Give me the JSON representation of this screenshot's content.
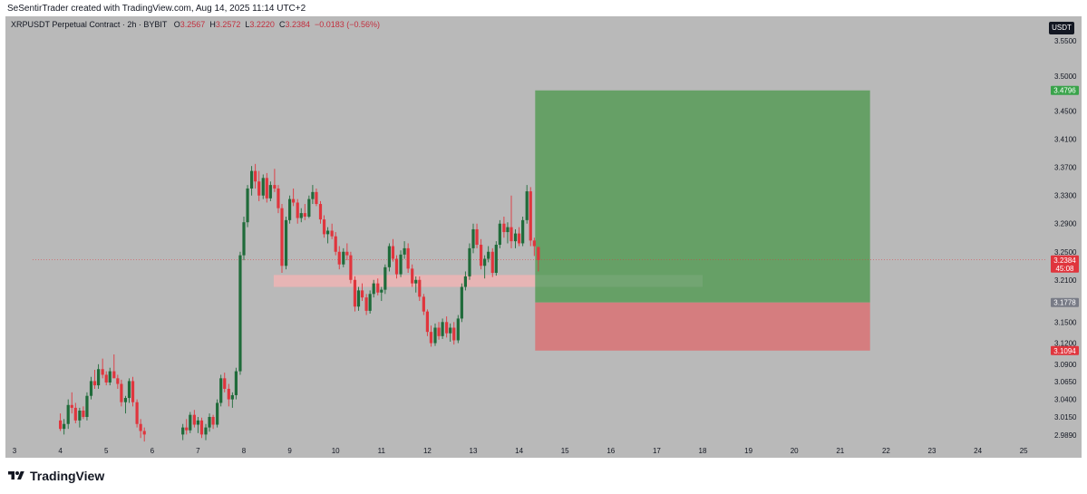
{
  "header": {
    "author_line": "SeSentirTrader created with TradingView.com, Aug 14, 2025 11:14 UTC+2"
  },
  "legend": {
    "symbol": "XRPUSDT Perpetual Contract · 2h · BYBIT",
    "open_label": "O",
    "open": "3.2567",
    "high_label": "H",
    "high": "3.2572",
    "low_label": "L",
    "low": "3.2220",
    "close_label": "C",
    "close": "3.2384",
    "change": "−0.0183 (−0.56%)"
  },
  "toolbar": {
    "currency_button": "USDT"
  },
  "footer": {
    "logo_text": "TradingView"
  },
  "colors": {
    "background": "#b9b9b9",
    "bull": "#1f6b3a",
    "bear": "#e0353d",
    "target_zone": "#66a066",
    "stop_zone": "#d57d7f",
    "supply_band": "#efb4b4",
    "price_label_current": "#e0353d",
    "price_label_target": "#39a34a",
    "price_label_entry": "#787b86",
    "price_label_stop": "#e0353d"
  },
  "chart_data": {
    "type": "candlestick",
    "symbol": "XRPUSDT",
    "interval": "2h",
    "exchange": "BYBIT",
    "currency": "USDT",
    "x_axis_labels": [
      {
        "label": "3",
        "day": 3
      },
      {
        "label": "4",
        "day": 4
      },
      {
        "label": "5",
        "day": 5
      },
      {
        "label": "6",
        "day": 6
      },
      {
        "label": "7",
        "day": 7
      },
      {
        "label": "8",
        "day": 8
      },
      {
        "label": "9",
        "day": 9
      },
      {
        "label": "10",
        "day": 10
      },
      {
        "label": "11",
        "day": 11
      },
      {
        "label": "12",
        "day": 12
      },
      {
        "label": "13",
        "day": 13
      },
      {
        "label": "14",
        "day": 14
      },
      {
        "label": "15",
        "day": 15
      },
      {
        "label": "16",
        "day": 16
      },
      {
        "label": "17",
        "day": 17
      },
      {
        "label": "18",
        "day": 18
      },
      {
        "label": "19",
        "day": 19
      },
      {
        "label": "20",
        "day": 20
      },
      {
        "label": "21",
        "day": 21
      },
      {
        "label": "22",
        "day": 22
      },
      {
        "label": "23",
        "day": 23
      },
      {
        "label": "24",
        "day": 24
      },
      {
        "label": "25",
        "day": 25
      }
    ],
    "y_ticks": [
      "3.5500",
      "3.5000",
      "3.4500",
      "3.4100",
      "3.3700",
      "3.3300",
      "3.2900",
      "3.2500",
      "3.2100",
      "3.1500",
      "3.1200",
      "3.0900",
      "3.0650",
      "3.0400",
      "3.0150",
      "2.9890"
    ],
    "y_range": [
      2.975,
      3.585
    ],
    "price_labels": {
      "current": {
        "price": 3.2384,
        "text": "3.2384",
        "countdown": "45:08"
      },
      "target": {
        "price": 3.4796,
        "text": "3.4796"
      },
      "entry": {
        "price": 3.1778,
        "text": "3.1778"
      },
      "stop": {
        "price": 3.1094,
        "text": "3.1094"
      }
    },
    "position": {
      "type": "long",
      "entry": 3.1778,
      "target": 3.4796,
      "stop": 3.1094,
      "day_start": 14.35,
      "day_end": 21.65
    },
    "supply_zone": {
      "price_top": 3.217,
      "price_bottom": 3.2,
      "day_start": 8.65,
      "day_end": 14.35,
      "faint_extension_end": 18.0
    },
    "candles": [
      [
        4.0,
        3.01,
        3.02,
        2.995,
        2.998
      ],
      [
        4.08,
        2.998,
        3.012,
        2.99,
        3.005
      ],
      [
        4.17,
        3.005,
        3.04,
        2.998,
        3.032
      ],
      [
        4.25,
        3.032,
        3.05,
        3.02,
        3.028
      ],
      [
        4.33,
        3.028,
        3.035,
        3.006,
        3.01
      ],
      [
        4.42,
        3.01,
        3.028,
        3.0,
        3.024
      ],
      [
        4.5,
        3.024,
        3.03,
        3.012,
        3.015
      ],
      [
        4.58,
        3.015,
        3.05,
        3.01,
        3.045
      ],
      [
        4.67,
        3.045,
        3.072,
        3.04,
        3.066
      ],
      [
        4.75,
        3.066,
        3.082,
        3.055,
        3.06
      ],
      [
        4.83,
        3.06,
        3.09,
        3.055,
        3.083
      ],
      [
        4.92,
        3.083,
        3.098,
        3.07,
        3.075
      ],
      [
        5.0,
        3.075,
        3.08,
        3.06,
        3.064
      ],
      [
        5.08,
        3.064,
        3.085,
        3.06,
        3.08
      ],
      [
        5.17,
        3.08,
        3.104,
        3.072,
        3.07
      ],
      [
        5.25,
        3.07,
        3.075,
        3.055,
        3.062
      ],
      [
        5.33,
        3.062,
        3.068,
        3.03,
        3.036
      ],
      [
        5.42,
        3.036,
        3.045,
        3.02,
        3.042
      ],
      [
        5.5,
        3.042,
        3.07,
        3.035,
        3.066
      ],
      [
        5.58,
        3.066,
        3.072,
        3.03,
        3.036
      ],
      [
        5.67,
        3.036,
        3.04,
        3.0,
        3.005
      ],
      [
        5.75,
        3.005,
        3.012,
        2.985,
        2.995
      ],
      [
        5.83,
        2.995,
        3.0,
        2.98,
        2.99
      ],
      [
        6.67,
        2.99,
        3.005,
        2.982,
        3.0
      ],
      [
        6.75,
        3.0,
        3.012,
        2.99,
        2.996
      ],
      [
        6.83,
        2.996,
        3.022,
        2.992,
        3.018
      ],
      [
        6.92,
        3.018,
        3.025,
        3.0,
        3.004
      ],
      [
        7.0,
        3.004,
        3.015,
        2.992,
        3.01
      ],
      [
        7.08,
        3.01,
        3.014,
        2.985,
        2.99
      ],
      [
        7.17,
        2.99,
        3.005,
        2.982,
        3.0
      ],
      [
        7.25,
        3.0,
        3.02,
        2.994,
        3.015
      ],
      [
        7.33,
        3.015,
        3.018,
        2.998,
        3.004
      ],
      [
        7.42,
        3.004,
        3.04,
        3.0,
        3.035
      ],
      [
        7.5,
        3.035,
        3.075,
        3.03,
        3.07
      ],
      [
        7.58,
        3.07,
        3.078,
        3.05,
        3.055
      ],
      [
        7.67,
        3.055,
        3.062,
        3.03,
        3.04
      ],
      [
        7.75,
        3.04,
        3.05,
        3.028,
        3.046
      ],
      [
        7.83,
        3.046,
        3.085,
        3.04,
        3.08
      ],
      [
        7.92,
        3.08,
        3.25,
        3.075,
        3.245
      ],
      [
        8.0,
        3.245,
        3.3,
        3.238,
        3.292
      ],
      [
        8.08,
        3.292,
        3.345,
        3.285,
        3.34
      ],
      [
        8.17,
        3.34,
        3.372,
        3.33,
        3.365
      ],
      [
        8.25,
        3.365,
        3.375,
        3.34,
        3.35
      ],
      [
        8.33,
        3.35,
        3.365,
        3.322,
        3.33
      ],
      [
        8.42,
        3.33,
        3.36,
        3.325,
        3.355
      ],
      [
        8.5,
        3.355,
        3.362,
        3.32,
        3.326
      ],
      [
        8.58,
        3.326,
        3.35,
        3.322,
        3.345
      ],
      [
        8.67,
        3.345,
        3.368,
        3.335,
        3.34
      ],
      [
        8.75,
        3.34,
        3.345,
        3.305,
        3.312
      ],
      [
        8.83,
        3.312,
        3.318,
        3.22,
        3.23
      ],
      [
        8.92,
        3.23,
        3.3,
        3.225,
        3.295
      ],
      [
        9.0,
        3.295,
        3.33,
        3.29,
        3.325
      ],
      [
        9.08,
        3.325,
        3.34,
        3.315,
        3.32
      ],
      [
        9.17,
        3.32,
        3.325,
        3.29,
        3.298
      ],
      [
        9.25,
        3.298,
        3.312,
        3.292,
        3.305
      ],
      [
        9.33,
        3.305,
        3.318,
        3.295,
        3.3
      ],
      [
        9.42,
        3.3,
        3.33,
        3.298,
        3.325
      ],
      [
        9.5,
        3.325,
        3.345,
        3.318,
        3.335
      ],
      [
        9.58,
        3.335,
        3.34,
        3.315,
        3.318
      ],
      [
        9.67,
        3.318,
        3.322,
        3.29,
        3.296
      ],
      [
        9.75,
        3.296,
        3.302,
        3.27,
        3.275
      ],
      [
        9.83,
        3.275,
        3.285,
        3.262,
        3.28
      ],
      [
        9.92,
        3.28,
        3.29,
        3.268,
        3.272
      ],
      [
        10.0,
        3.272,
        3.278,
        3.245,
        3.25
      ],
      [
        10.08,
        3.25,
        3.258,
        3.225,
        3.232
      ],
      [
        10.17,
        3.232,
        3.255,
        3.228,
        3.25
      ],
      [
        10.25,
        3.25,
        3.262,
        3.238,
        3.245
      ],
      [
        10.33,
        3.245,
        3.25,
        3.205,
        3.21
      ],
      [
        10.42,
        3.21,
        3.215,
        3.165,
        3.172
      ],
      [
        10.5,
        3.172,
        3.2,
        3.166,
        3.195
      ],
      [
        10.58,
        3.195,
        3.205,
        3.18,
        3.185
      ],
      [
        10.67,
        3.185,
        3.19,
        3.16,
        3.166
      ],
      [
        10.75,
        3.166,
        3.195,
        3.162,
        3.19
      ],
      [
        10.83,
        3.19,
        3.21,
        3.185,
        3.205
      ],
      [
        10.92,
        3.205,
        3.212,
        3.188,
        3.192
      ],
      [
        11.0,
        3.192,
        3.2,
        3.18,
        3.196
      ],
      [
        11.08,
        3.196,
        3.232,
        3.19,
        3.228
      ],
      [
        11.17,
        3.228,
        3.262,
        3.222,
        3.258
      ],
      [
        11.25,
        3.258,
        3.268,
        3.236,
        3.24
      ],
      [
        11.33,
        3.24,
        3.245,
        3.212,
        3.218
      ],
      [
        11.42,
        3.218,
        3.252,
        3.214,
        3.246
      ],
      [
        11.5,
        3.246,
        3.265,
        3.24,
        3.255
      ],
      [
        11.58,
        3.255,
        3.262,
        3.22,
        3.226
      ],
      [
        11.67,
        3.226,
        3.232,
        3.2,
        3.205
      ],
      [
        11.75,
        3.205,
        3.215,
        3.192,
        3.21
      ],
      [
        11.83,
        3.21,
        3.215,
        3.18,
        3.186
      ],
      [
        11.92,
        3.186,
        3.19,
        3.16,
        3.165
      ],
      [
        12.0,
        3.165,
        3.168,
        3.13,
        3.136
      ],
      [
        12.08,
        3.136,
        3.145,
        3.115,
        3.12
      ],
      [
        12.17,
        3.12,
        3.148,
        3.116,
        3.142
      ],
      [
        12.25,
        3.142,
        3.15,
        3.125,
        3.13
      ],
      [
        12.33,
        3.13,
        3.155,
        3.126,
        3.15
      ],
      [
        12.42,
        3.15,
        3.158,
        3.128,
        3.134
      ],
      [
        12.5,
        3.134,
        3.148,
        3.122,
        3.142
      ],
      [
        12.58,
        3.142,
        3.15,
        3.118,
        3.124
      ],
      [
        12.67,
        3.124,
        3.16,
        3.12,
        3.155
      ],
      [
        12.75,
        3.155,
        3.205,
        3.15,
        3.2
      ],
      [
        12.83,
        3.2,
        3.222,
        3.195,
        3.215
      ],
      [
        12.92,
        3.215,
        3.262,
        3.21,
        3.255
      ],
      [
        13.0,
        3.255,
        3.29,
        3.248,
        3.282
      ],
      [
        13.08,
        3.282,
        3.29,
        3.255,
        3.26
      ],
      [
        13.17,
        3.26,
        3.268,
        3.225,
        3.23
      ],
      [
        13.25,
        3.23,
        3.245,
        3.212,
        3.24
      ],
      [
        13.33,
        3.24,
        3.258,
        3.235,
        3.25
      ],
      [
        13.42,
        3.25,
        3.255,
        3.214,
        3.22
      ],
      [
        13.5,
        3.22,
        3.265,
        3.216,
        3.26
      ],
      [
        13.58,
        3.26,
        3.295,
        3.255,
        3.29
      ],
      [
        13.67,
        3.29,
        3.3,
        3.27,
        3.278
      ],
      [
        13.75,
        3.278,
        3.292,
        3.262,
        3.285
      ],
      [
        13.83,
        3.285,
        3.33,
        3.255,
        3.265
      ],
      [
        13.92,
        3.265,
        3.282,
        3.255,
        3.276
      ],
      [
        14.0,
        3.276,
        3.285,
        3.258,
        3.262
      ],
      [
        14.08,
        3.262,
        3.3,
        3.258,
        3.295
      ],
      [
        14.17,
        3.295,
        3.345,
        3.29,
        3.336
      ],
      [
        14.25,
        3.336,
        3.342,
        3.258,
        3.266
      ],
      [
        14.33,
        3.266,
        3.27,
        3.244,
        3.258
      ],
      [
        14.42,
        3.2567,
        3.2572,
        3.222,
        3.2384
      ]
    ]
  }
}
